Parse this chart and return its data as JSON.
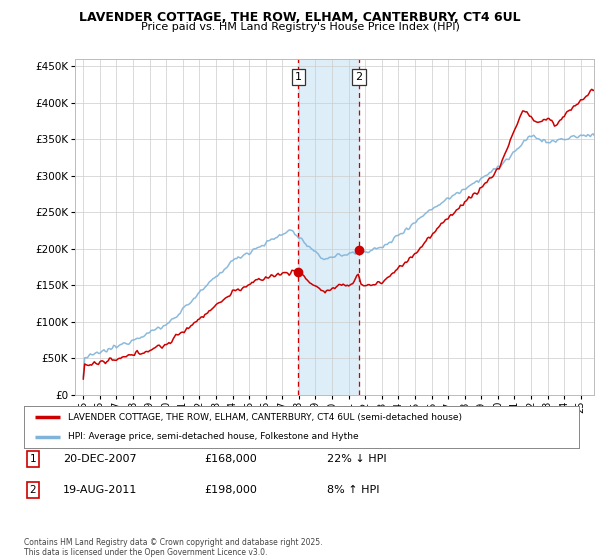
{
  "title": "LAVENDER COTTAGE, THE ROW, ELHAM, CANTERBURY, CT4 6UL",
  "subtitle": "Price paid vs. HM Land Registry's House Price Index (HPI)",
  "sale1": {
    "price": 168000,
    "label": "1",
    "x_year": 2007.96
  },
  "sale2": {
    "price": 198000,
    "label": "2",
    "x_year": 2011.63
  },
  "legend_line1": "LAVENDER COTTAGE, THE ROW, ELHAM, CANTERBURY, CT4 6UL (semi-detached house)",
  "legend_line2": "HPI: Average price, semi-detached house, Folkestone and Hythe",
  "footer": "Contains HM Land Registry data © Crown copyright and database right 2025.\nThis data is licensed under the Open Government Licence v3.0.",
  "line_color_price": "#cc0000",
  "line_color_hpi": "#7fb3d9",
  "shading_color": "#ddeef8",
  "bg_color": "#ffffff",
  "grid_color": "#cccccc",
  "ylim": [
    0,
    460000
  ],
  "yticks": [
    0,
    50000,
    100000,
    150000,
    200000,
    250000,
    300000,
    350000,
    400000,
    450000
  ],
  "xlim": [
    1994.5,
    2025.8
  ],
  "xticks": [
    1995,
    1996,
    1997,
    1998,
    1999,
    2000,
    2001,
    2002,
    2003,
    2004,
    2005,
    2006,
    2007,
    2008,
    2009,
    2010,
    2011,
    2012,
    2013,
    2014,
    2015,
    2016,
    2017,
    2018,
    2019,
    2020,
    2021,
    2022,
    2023,
    2024,
    2025
  ]
}
